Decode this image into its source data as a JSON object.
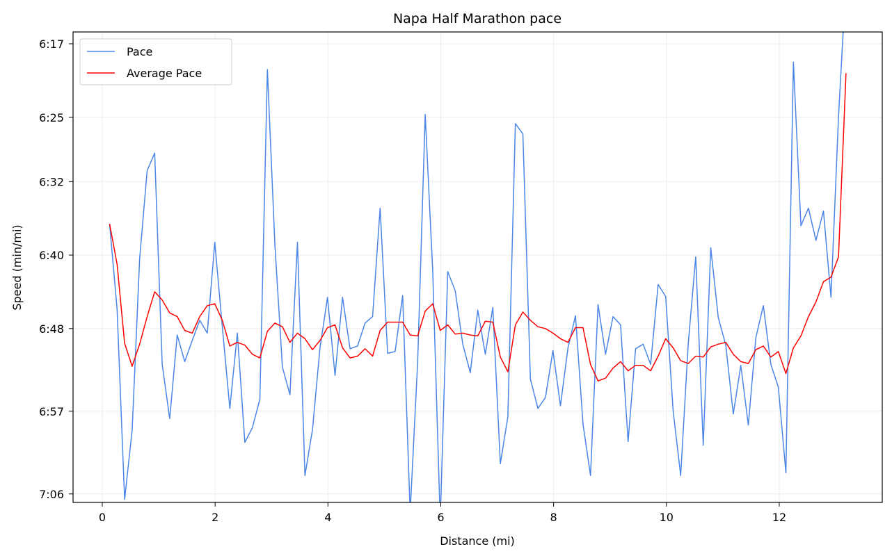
{
  "chart_data": {
    "type": "line",
    "title": "Napa Half Marathon pace",
    "xlabel": "Distance (mi)",
    "ylabel": "Speed (min/mi)",
    "xlim": [
      -0.52,
      13.8
    ],
    "ylim_seconds": [
      426.9,
      375.7
    ],
    "y_inverted": true,
    "grid": true,
    "legend_position": "top-left",
    "x_ticks": [
      0,
      2,
      4,
      6,
      8,
      10,
      12
    ],
    "x_tick_labels": [
      "0",
      "2",
      "4",
      "6",
      "8",
      "10",
      "12"
    ],
    "y_ticks_seconds": [
      377,
      385,
      392,
      400,
      408,
      417,
      426
    ],
    "y_tick_labels": [
      "6:17",
      "6:25",
      "6:32",
      "6:40",
      "6:48",
      "6:57",
      "7:06"
    ],
    "series": [
      {
        "name": "Pace",
        "color": "#4a86e8",
        "x_start": 0.13,
        "x_step": 0.1332,
        "values_seconds": [
          396.6,
          405.9,
          426.6,
          419.1,
          400.4,
          390.8,
          388.9,
          411.9,
          417.8,
          408.7,
          411.6,
          409.3,
          407.1,
          408.5,
          398.6,
          407.8,
          416.7,
          408.5,
          420.4,
          418.8,
          415.7,
          379.8,
          398.9,
          412.2,
          415.2,
          398.6,
          424.0,
          419.0,
          410.1,
          404.6,
          413.1,
          404.6,
          410.2,
          409.9,
          407.4,
          406.7,
          394.9,
          410.7,
          410.5,
          404.4,
          428.0,
          411.6,
          384.7,
          401.7,
          429.0,
          401.8,
          403.9,
          409.7,
          412.8,
          406.0,
          410.8,
          405.7,
          422.7,
          417.6,
          385.7,
          386.8,
          413.5,
          416.7,
          415.5,
          410.4,
          416.4,
          410.1,
          406.6,
          418.4,
          424.0,
          405.4,
          410.8,
          406.7,
          407.6,
          420.3,
          410.2,
          409.7,
          411.9,
          403.2,
          404.5,
          417.0,
          424.0,
          409.7,
          400.2,
          420.7,
          399.2,
          406.8,
          409.8,
          417.3,
          412.0,
          418.5,
          409.0,
          405.5,
          411.9,
          414.4,
          423.7,
          379.0,
          396.8,
          394.9,
          398.4,
          395.2,
          404.6,
          385.0,
          370.0
        ]
      },
      {
        "name": "Average Pace",
        "color": "#ff0000",
        "x_start": 0.13,
        "x_step": 0.1332,
        "values_seconds": [
          396.6,
          401.0,
          409.6,
          412.1,
          409.7,
          406.7,
          404.0,
          404.9,
          406.3,
          406.7,
          408.2,
          408.5,
          406.7,
          405.5,
          405.3,
          407.1,
          409.9,
          409.5,
          409.8,
          410.8,
          411.2,
          408.3,
          407.4,
          407.8,
          409.5,
          408.5,
          409.1,
          410.3,
          409.3,
          407.9,
          407.6,
          410.1,
          411.2,
          411.0,
          410.2,
          411.0,
          408.2,
          407.3,
          407.3,
          407.3,
          408.7,
          408.8,
          406.1,
          405.3,
          408.2,
          407.6,
          408.6,
          408.5,
          408.7,
          408.8,
          407.2,
          407.3,
          411.1,
          412.7,
          407.6,
          406.2,
          407.1,
          407.8,
          408.0,
          408.5,
          409.1,
          409.5,
          407.9,
          407.9,
          411.9,
          413.7,
          413.4,
          412.3,
          411.6,
          412.6,
          412.0,
          412.0,
          412.6,
          411.0,
          409.1,
          410.1,
          411.5,
          411.8,
          411.0,
          411.1,
          410.0,
          409.7,
          409.5,
          410.8,
          411.6,
          411.8,
          410.3,
          409.9,
          411.1,
          410.5,
          412.9,
          410.1,
          408.8,
          406.7,
          405.1,
          402.9,
          402.4,
          400.2,
          380.2
        ]
      }
    ]
  }
}
